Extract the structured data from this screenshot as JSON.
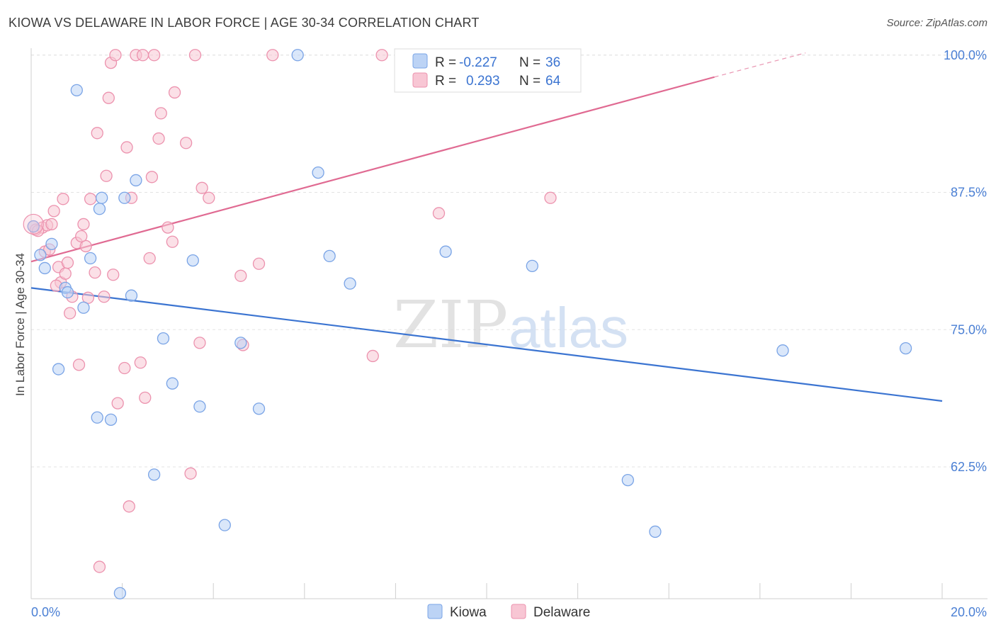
{
  "header": {
    "title": "KIOWA VS DELAWARE IN LABOR FORCE | AGE 30-34 CORRELATION CHART",
    "source": "Source: ZipAtlas.com"
  },
  "watermark": {
    "zip": "ZIP",
    "atlas": "atlas"
  },
  "colors": {
    "kiowa_fill": "#bcd3f5",
    "kiowa_stroke": "#7aa4e6",
    "kiowa_line": "#3b74d1",
    "delaware_fill": "#f8c6d4",
    "delaware_stroke": "#ec92ae",
    "delaware_line": "#e06a92",
    "grid": "#e3e3e3",
    "axis_text": "#4a7fd4"
  },
  "chart_data": {
    "type": "scatter",
    "title": "KIOWA VS DELAWARE IN LABOR FORCE | AGE 30-34 CORRELATION CHART",
    "xlabel": "",
    "ylabel": "In Labor Force | Age 30-34",
    "xlim": [
      0,
      20
    ],
    "ylim": [
      50.5,
      100.5
    ],
    "x_tick_labels": [
      "0.0%",
      "20.0%"
    ],
    "y_ticks": [
      62.5,
      75.0,
      87.5,
      100.0
    ],
    "y_tick_labels": [
      "62.5%",
      "75.0%",
      "87.5%",
      "100.0%"
    ],
    "grid": true,
    "legend_position": "top-center",
    "legend": [
      {
        "name": "Kiowa",
        "r_label": "R = ",
        "r_value": "-0.227",
        "n_label": "N = ",
        "n_value": "36"
      },
      {
        "name": "Delaware",
        "r_label": "R = ",
        "r_value": "0.293",
        "n_label": "N = ",
        "n_value": "64"
      }
    ],
    "series": [
      {
        "name": "Kiowa",
        "trend": {
          "x0": 0,
          "y0": 78.8,
          "x1": 20,
          "y1": 68.5
        },
        "points": [
          [
            0.05,
            84.4
          ],
          [
            0.2,
            81.8
          ],
          [
            0.3,
            80.6
          ],
          [
            0.45,
            82.8
          ],
          [
            0.6,
            71.4
          ],
          [
            0.75,
            78.8
          ],
          [
            0.8,
            78.4
          ],
          [
            1.0,
            96.8
          ],
          [
            1.15,
            77.0
          ],
          [
            1.3,
            81.5
          ],
          [
            1.45,
            67.0
          ],
          [
            1.5,
            86.0
          ],
          [
            1.55,
            87.0
          ],
          [
            1.75,
            66.8
          ],
          [
            1.95,
            51.0
          ],
          [
            2.05,
            87.0
          ],
          [
            2.2,
            78.1
          ],
          [
            2.3,
            88.6
          ],
          [
            2.7,
            61.8
          ],
          [
            2.9,
            74.2
          ],
          [
            3.1,
            70.1
          ],
          [
            3.55,
            81.3
          ],
          [
            3.7,
            68.0
          ],
          [
            4.25,
            57.2
          ],
          [
            4.6,
            73.8
          ],
          [
            5.0,
            67.8
          ],
          [
            5.85,
            100.0
          ],
          [
            6.3,
            89.3
          ],
          [
            6.55,
            81.7
          ],
          [
            7.0,
            79.2
          ],
          [
            9.1,
            82.1
          ],
          [
            11.0,
            80.8
          ],
          [
            13.1,
            61.3
          ],
          [
            13.7,
            56.6
          ],
          [
            16.5,
            73.1
          ],
          [
            19.2,
            73.3
          ]
        ]
      },
      {
        "name": "Delaware",
        "trend": {
          "x0": 0,
          "y0": 81.2,
          "x1": 15.0,
          "y1": 98.0,
          "dash_x1": 17.0,
          "dash_y1": 100.2
        },
        "points": [
          [
            0.05,
            84.4
          ],
          [
            0.1,
            84.1
          ],
          [
            0.25,
            84.3
          ],
          [
            0.3,
            82.1
          ],
          [
            0.35,
            84.5
          ],
          [
            0.4,
            82.3
          ],
          [
            0.45,
            84.6
          ],
          [
            0.5,
            85.8
          ],
          [
            0.6,
            80.7
          ],
          [
            0.65,
            79.3
          ],
          [
            0.7,
            86.9
          ],
          [
            0.75,
            80.1
          ],
          [
            0.8,
            81.1
          ],
          [
            0.85,
            76.5
          ],
          [
            0.9,
            78.0
          ],
          [
            1.0,
            82.9
          ],
          [
            1.05,
            71.8
          ],
          [
            1.15,
            84.6
          ],
          [
            1.2,
            82.6
          ],
          [
            1.25,
            77.9
          ],
          [
            1.3,
            86.9
          ],
          [
            1.4,
            80.2
          ],
          [
            1.45,
            92.9
          ],
          [
            1.5,
            53.4
          ],
          [
            1.6,
            78.0
          ],
          [
            1.65,
            89.0
          ],
          [
            1.7,
            96.1
          ],
          [
            1.75,
            99.3
          ],
          [
            1.8,
            80.0
          ],
          [
            1.85,
            100.0
          ],
          [
            1.9,
            68.3
          ],
          [
            2.05,
            71.5
          ],
          [
            2.1,
            91.6
          ],
          [
            2.15,
            58.9
          ],
          [
            2.2,
            87.0
          ],
          [
            2.3,
            100.0
          ],
          [
            2.4,
            72.0
          ],
          [
            2.45,
            100.0
          ],
          [
            2.5,
            68.8
          ],
          [
            2.6,
            81.5
          ],
          [
            2.65,
            88.9
          ],
          [
            2.7,
            100.0
          ],
          [
            2.8,
            92.4
          ],
          [
            2.85,
            94.7
          ],
          [
            3.0,
            84.3
          ],
          [
            3.1,
            83.0
          ],
          [
            3.15,
            96.6
          ],
          [
            3.4,
            92.0
          ],
          [
            3.5,
            61.9
          ],
          [
            3.7,
            73.8
          ],
          [
            3.75,
            87.9
          ],
          [
            3.9,
            87.0
          ],
          [
            4.6,
            79.9
          ],
          [
            4.65,
            73.6
          ],
          [
            5.0,
            81.0
          ],
          [
            5.3,
            100.0
          ],
          [
            7.5,
            72.6
          ],
          [
            7.7,
            100.0
          ],
          [
            8.95,
            85.6
          ],
          [
            11.4,
            87.0
          ],
          [
            0.15,
            84.0
          ],
          [
            0.55,
            79.0
          ],
          [
            1.1,
            83.5
          ],
          [
            3.6,
            100.0
          ]
        ]
      }
    ]
  }
}
